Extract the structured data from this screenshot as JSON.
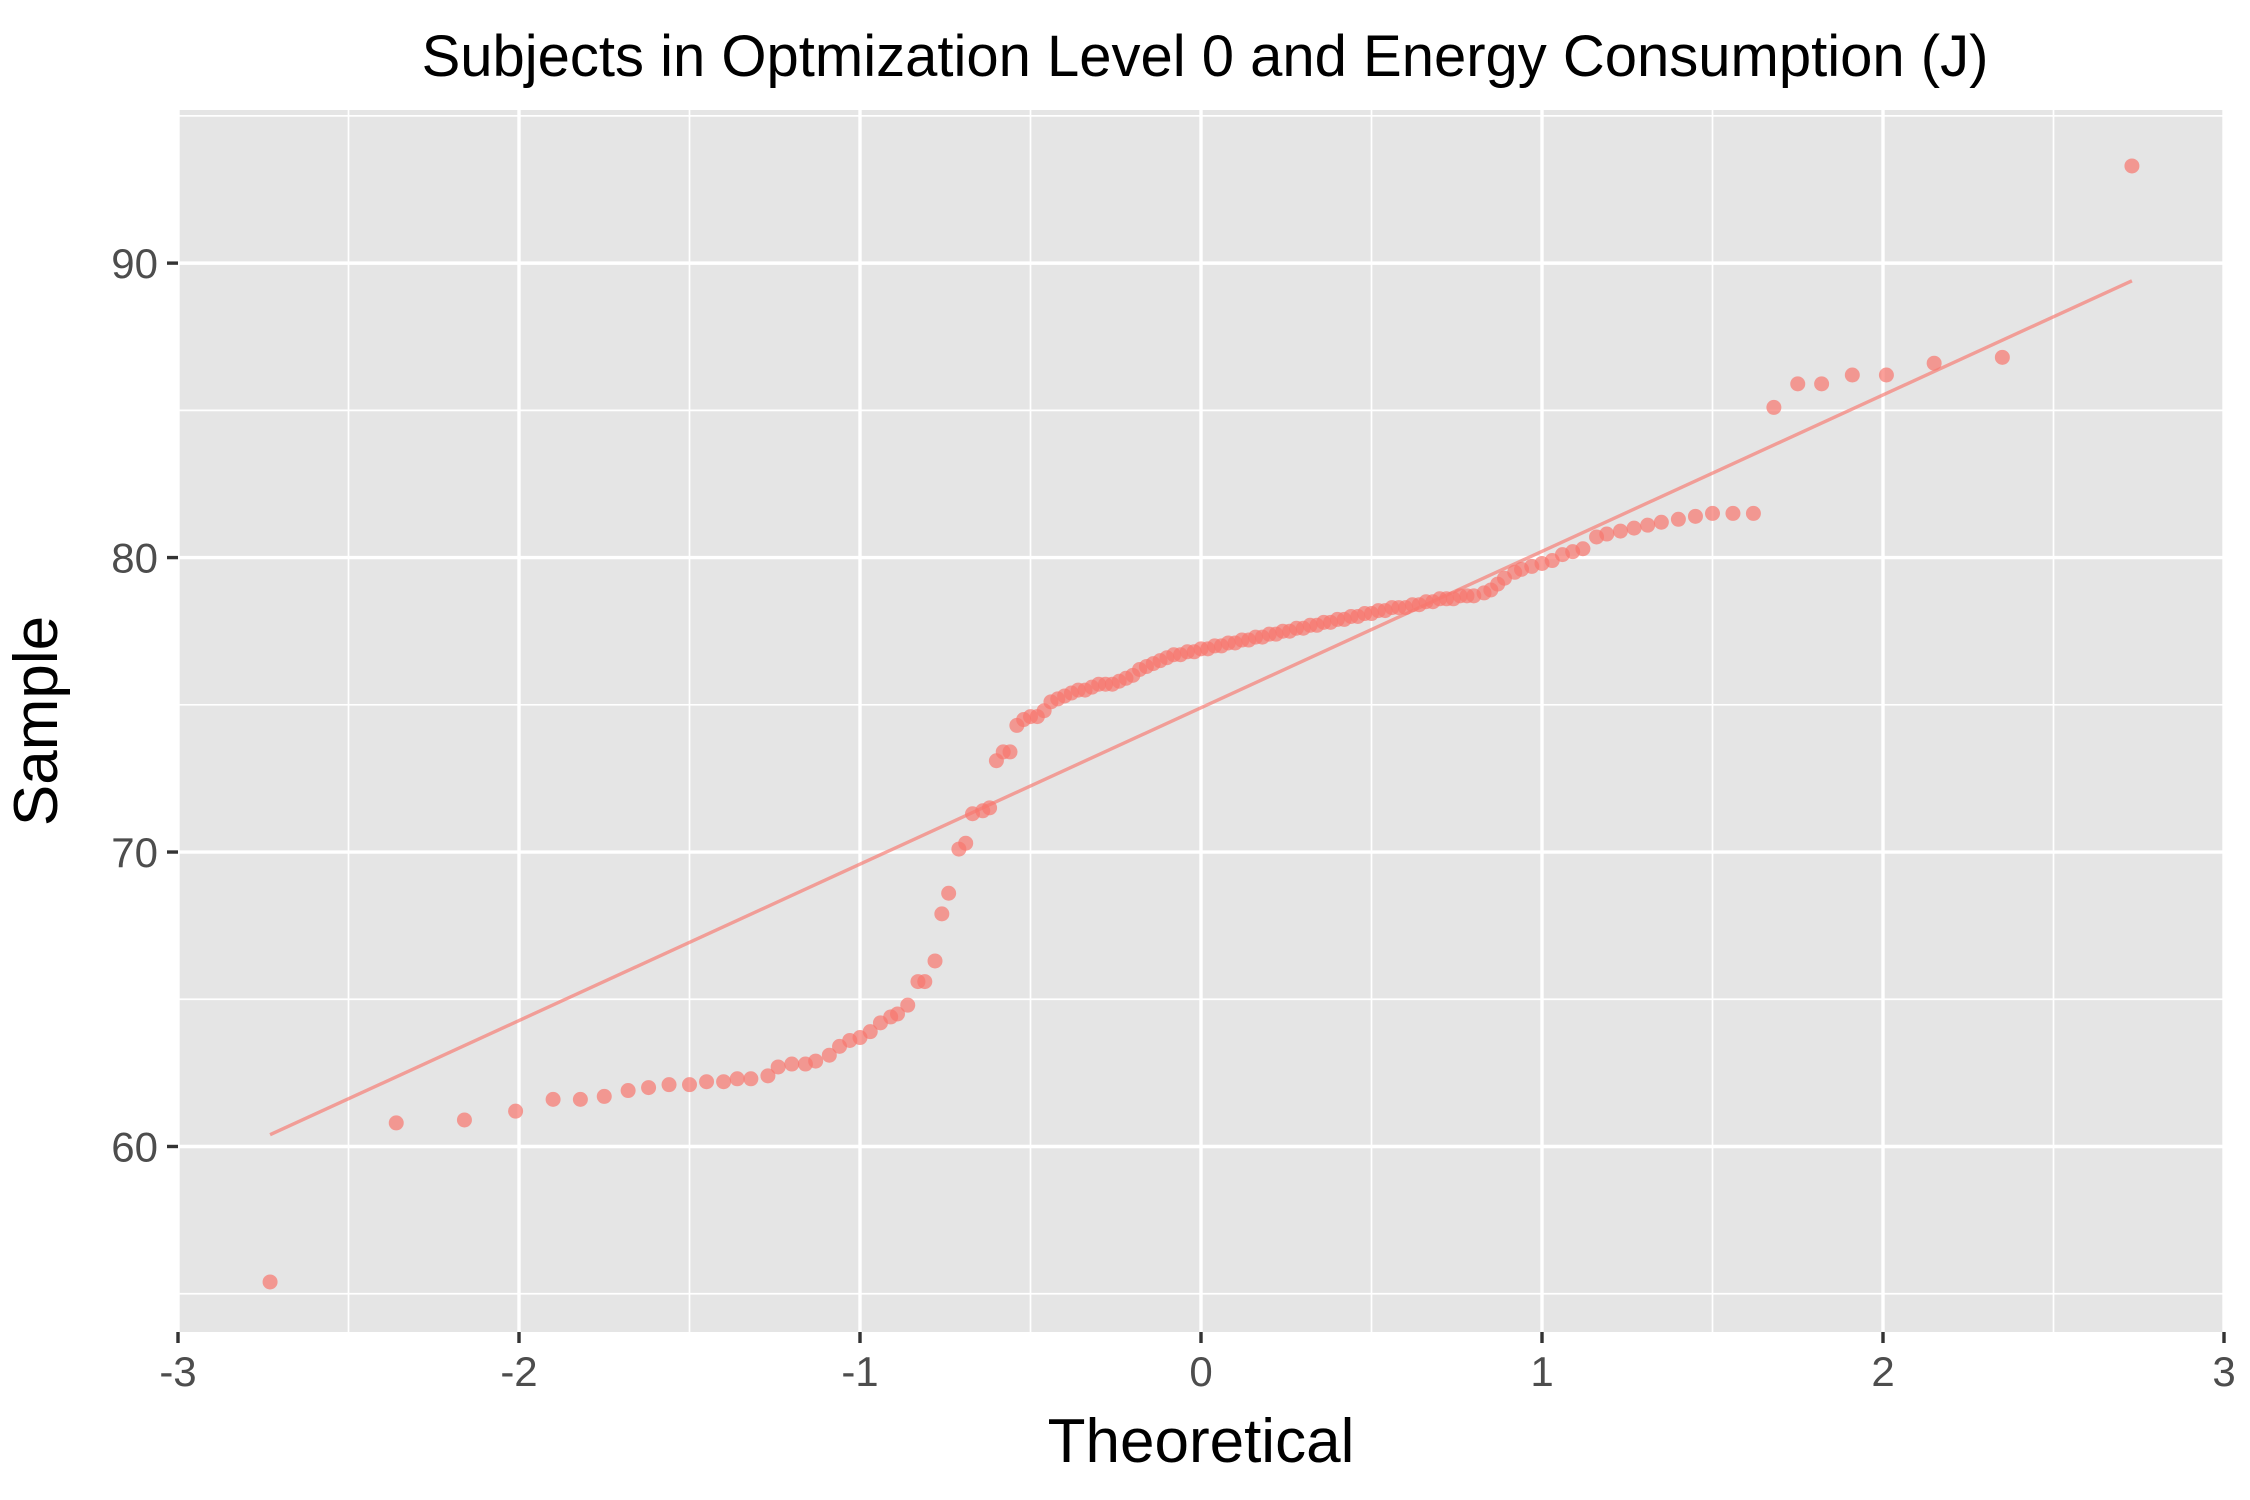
{
  "chart_data": {
    "type": "scatter",
    "title": "Subjects in Optmization Level 0 and Energy Consumption (J)",
    "xlabel": "Theoretical",
    "ylabel": "Sample",
    "xlim": [
      -3,
      3
    ],
    "ylim": [
      53.7,
      95.2
    ],
    "x_ticks": [
      -3,
      -2,
      -1,
      0,
      1,
      2,
      3
    ],
    "x_tick_labels": [
      "-3",
      "-2",
      "-1",
      "0",
      "1",
      "2",
      "3"
    ],
    "y_ticks": [
      60,
      70,
      80,
      90
    ],
    "y_tick_labels": [
      "60",
      "70",
      "80",
      "90"
    ],
    "grid": true,
    "legend": "none",
    "colors": {
      "points": "#f8766d",
      "line": "#f8766d",
      "panel": "#e5e5e5",
      "grid": "#ffffff"
    },
    "reference_line": {
      "x": [
        -2.73,
        2.73
      ],
      "y": [
        60.4,
        89.4
      ]
    },
    "series": [
      {
        "x": [
          -2.73,
          -2.36,
          -2.16,
          -2.01,
          -1.9,
          -1.82,
          -1.75,
          -1.68,
          -1.62,
          -1.56,
          -1.5,
          -1.45,
          -1.4,
          -1.36,
          -1.32,
          -1.27,
          -1.24,
          -1.2,
          -1.16,
          -1.13,
          -1.09,
          -1.06,
          -1.03,
          -1.0,
          -0.97,
          -0.94,
          -0.91,
          -0.89,
          -0.86,
          -0.83,
          -0.81,
          -0.78,
          -0.76,
          -0.74,
          -0.71,
          -0.69,
          -0.67,
          -0.64,
          -0.62,
          -0.6,
          -0.58,
          -0.56,
          -0.54,
          -0.52,
          -0.5,
          -0.48,
          -0.46,
          -0.44,
          -0.42,
          -0.4,
          -0.38,
          -0.36,
          -0.34,
          -0.32,
          -0.3,
          -0.28,
          -0.26,
          -0.24,
          -0.22,
          -0.2,
          -0.18,
          -0.16,
          -0.14,
          -0.12,
          -0.1,
          -0.08,
          -0.06,
          -0.04,
          -0.02,
          0.0,
          0.02,
          0.04,
          0.06,
          0.08,
          0.1,
          0.12,
          0.14,
          0.16,
          0.18,
          0.2,
          0.22,
          0.24,
          0.26,
          0.28,
          0.3,
          0.32,
          0.34,
          0.36,
          0.38,
          0.4,
          0.42,
          0.44,
          0.46,
          0.48,
          0.5,
          0.52,
          0.54,
          0.56,
          0.58,
          0.6,
          0.62,
          0.64,
          0.66,
          0.68,
          0.7,
          0.72,
          0.74,
          0.76,
          0.78,
          0.8,
          0.83,
          0.85,
          0.87,
          0.89,
          0.92,
          0.94,
          0.97,
          1.0,
          1.03,
          1.06,
          1.09,
          1.12,
          1.16,
          1.19,
          1.23,
          1.27,
          1.31,
          1.35,
          1.4,
          1.45,
          1.5,
          1.56,
          1.62,
          1.68,
          1.75,
          1.82,
          1.91,
          2.01,
          2.15,
          2.35,
          2.73
        ],
        "y": [
          55.4,
          60.8,
          60.9,
          61.2,
          61.6,
          61.6,
          61.7,
          61.9,
          62.0,
          62.1,
          62.1,
          62.2,
          62.2,
          62.3,
          62.3,
          62.4,
          62.7,
          62.8,
          62.8,
          62.9,
          63.1,
          63.4,
          63.6,
          63.7,
          63.9,
          64.2,
          64.4,
          64.5,
          64.8,
          65.6,
          65.6,
          66.3,
          67.9,
          68.6,
          70.1,
          70.3,
          71.3,
          71.4,
          71.5,
          73.1,
          73.4,
          73.4,
          74.3,
          74.5,
          74.6,
          74.6,
          74.8,
          75.1,
          75.2,
          75.3,
          75.4,
          75.5,
          75.5,
          75.6,
          75.7,
          75.7,
          75.7,
          75.8,
          75.9,
          76.0,
          76.2,
          76.3,
          76.4,
          76.5,
          76.6,
          76.7,
          76.7,
          76.8,
          76.8,
          76.9,
          76.9,
          77.0,
          77.0,
          77.1,
          77.1,
          77.2,
          77.2,
          77.3,
          77.3,
          77.4,
          77.4,
          77.5,
          77.5,
          77.6,
          77.6,
          77.7,
          77.7,
          77.8,
          77.8,
          77.9,
          77.9,
          78.0,
          78.0,
          78.1,
          78.1,
          78.2,
          78.2,
          78.3,
          78.3,
          78.3,
          78.4,
          78.4,
          78.5,
          78.5,
          78.6,
          78.6,
          78.6,
          78.7,
          78.7,
          78.7,
          78.8,
          78.9,
          79.1,
          79.3,
          79.5,
          79.6,
          79.7,
          79.8,
          79.9,
          80.1,
          80.2,
          80.3,
          80.7,
          80.8,
          80.9,
          81.0,
          81.1,
          81.2,
          81.3,
          81.4,
          81.5,
          81.5,
          81.5,
          85.1,
          85.9,
          85.9,
          86.2,
          86.2,
          86.6,
          86.8,
          93.3
        ]
      }
    ]
  }
}
